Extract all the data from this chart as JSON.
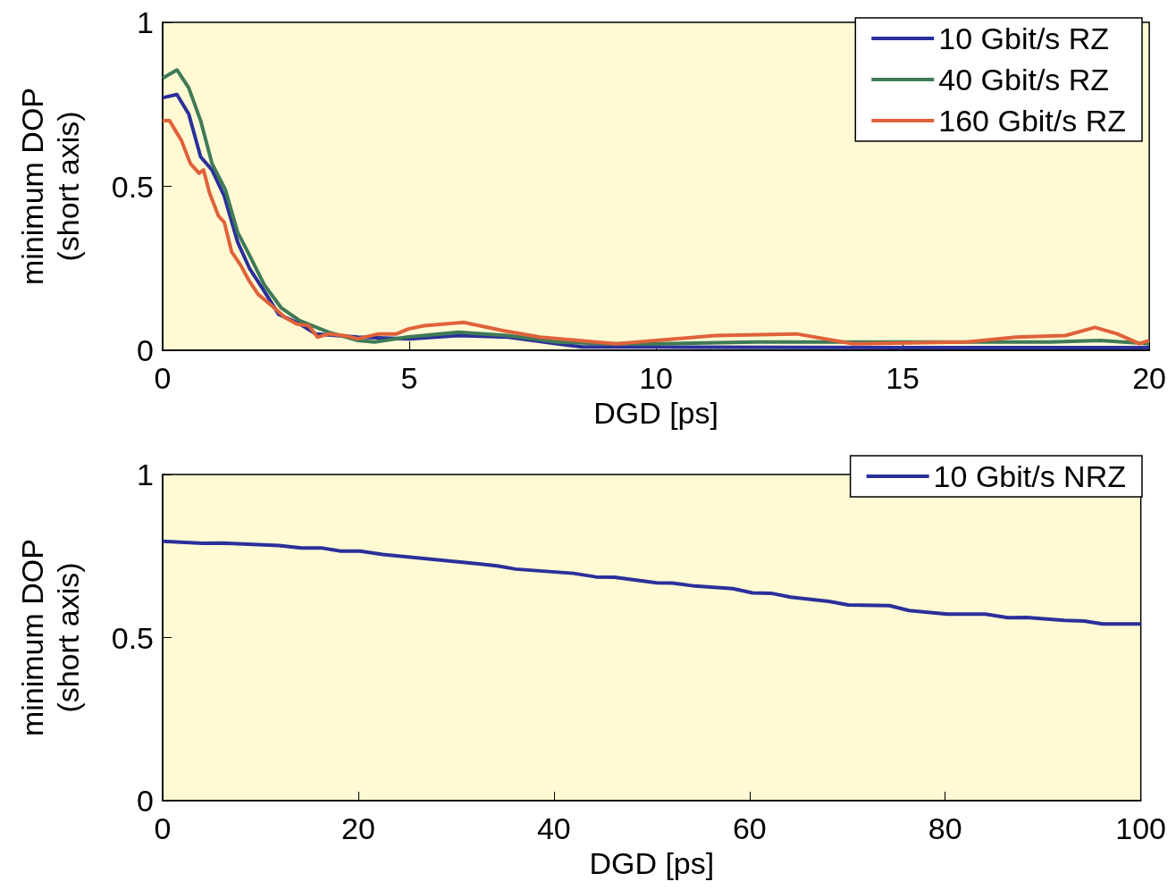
{
  "chart_data": [
    {
      "type": "line",
      "xlabel": "DGD [ps]",
      "ylabel": "minimum DOP\n(short axis)",
      "xlim": [
        0,
        20
      ],
      "ylim": [
        0,
        1
      ],
      "xticks": [
        0,
        5,
        10,
        15,
        20
      ],
      "yticks": [
        0,
        0.5,
        1
      ],
      "legend": "top right",
      "grid": false,
      "line_style": "solid",
      "marker": "none",
      "series": [
        {
          "name": "10 Gbit/s RZ",
          "color": "#2b2f9b",
          "x": [
            0,
            0.29,
            0.53,
            0.77,
            1.0,
            1.25,
            1.52,
            1.76,
            2.06,
            2.35,
            2.78,
            3.1,
            3.96,
            5,
            6,
            7,
            8,
            8.5,
            10,
            15,
            20
          ],
          "values": [
            0.77,
            0.78,
            0.72,
            0.59,
            0.55,
            0.47,
            0.33,
            0.25,
            0.18,
            0.11,
            0.08,
            0.05,
            0.04,
            0.035,
            0.045,
            0.04,
            0.02,
            0.01,
            0.01,
            0.008,
            0.008
          ]
        },
        {
          "name": "40 Gbit/s RZ",
          "color": "#3f7a57",
          "x": [
            0,
            0.29,
            0.53,
            0.77,
            1.0,
            1.27,
            1.52,
            1.76,
            2.06,
            2.4,
            2.78,
            3.37,
            3.96,
            4.3,
            4.95,
            6,
            7,
            8,
            9,
            10,
            12,
            14,
            16,
            18,
            19,
            20
          ],
          "values": [
            0.83,
            0.855,
            0.8,
            0.7,
            0.57,
            0.49,
            0.36,
            0.29,
            0.2,
            0.13,
            0.09,
            0.055,
            0.03,
            0.025,
            0.04,
            0.055,
            0.045,
            0.025,
            0.02,
            0.02,
            0.025,
            0.025,
            0.025,
            0.025,
            0.03,
            0.02
          ]
        },
        {
          "name": "160 Gbit/s RZ",
          "color": "#e0623a",
          "x": [
            0,
            0.14,
            0.38,
            0.56,
            0.74,
            0.83,
            0.95,
            1.13,
            1.25,
            1.4,
            1.58,
            1.76,
            1.94,
            2.18,
            2.48,
            2.72,
            2.96,
            3.14,
            3.37,
            3.67,
            3.96,
            4.38,
            4.74,
            4.98,
            5.3,
            6.1,
            6.9,
            7.65,
            9.2,
            11.2,
            12.85,
            14,
            16.3,
            17.3,
            18.3,
            18.9,
            19.35,
            19.8,
            20
          ],
          "values": [
            0.7,
            0.7,
            0.64,
            0.57,
            0.54,
            0.55,
            0.48,
            0.41,
            0.39,
            0.3,
            0.26,
            0.21,
            0.17,
            0.14,
            0.1,
            0.08,
            0.075,
            0.04,
            0.05,
            0.045,
            0.035,
            0.05,
            0.05,
            0.065,
            0.075,
            0.085,
            0.06,
            0.04,
            0.02,
            0.045,
            0.05,
            0.02,
            0.025,
            0.04,
            0.045,
            0.07,
            0.05,
            0.02,
            0.03
          ]
        }
      ]
    },
    {
      "type": "line",
      "xlabel": "DGD [ps]",
      "ylabel": "minimum DOP\n(short axis)",
      "xlim": [
        0,
        100
      ],
      "ylim": [
        0,
        1
      ],
      "xticks": [
        0,
        20,
        40,
        60,
        80,
        100
      ],
      "yticks": [
        0,
        0.5,
        1
      ],
      "legend": "top right",
      "grid": false,
      "line_style": "solid",
      "marker": "none",
      "series": [
        {
          "name": "10 Gbit/s NRZ",
          "color": "#2b2f9b",
          "x": [
            0,
            4.1,
            6,
            11.9,
            14.2,
            16.2,
            18.2,
            20.2,
            22.5,
            32.3,
            34.2,
            36.1,
            42,
            44.3,
            46.2,
            50.5,
            52.1,
            54.4,
            58.3,
            60.3,
            62.2,
            64.2,
            68.1,
            70.1,
            74.3,
            76.3,
            80.2,
            84.1,
            86.4,
            88.3,
            92.2,
            94.2,
            96.1,
            100
          ],
          "values": [
            0.795,
            0.789,
            0.79,
            0.782,
            0.775,
            0.775,
            0.765,
            0.765,
            0.755,
            0.726,
            0.72,
            0.71,
            0.697,
            0.686,
            0.685,
            0.668,
            0.667,
            0.658,
            0.65,
            0.637,
            0.636,
            0.624,
            0.611,
            0.6,
            0.598,
            0.583,
            0.572,
            0.572,
            0.561,
            0.562,
            0.553,
            0.551,
            0.542,
            0.542
          ]
        }
      ]
    }
  ]
}
